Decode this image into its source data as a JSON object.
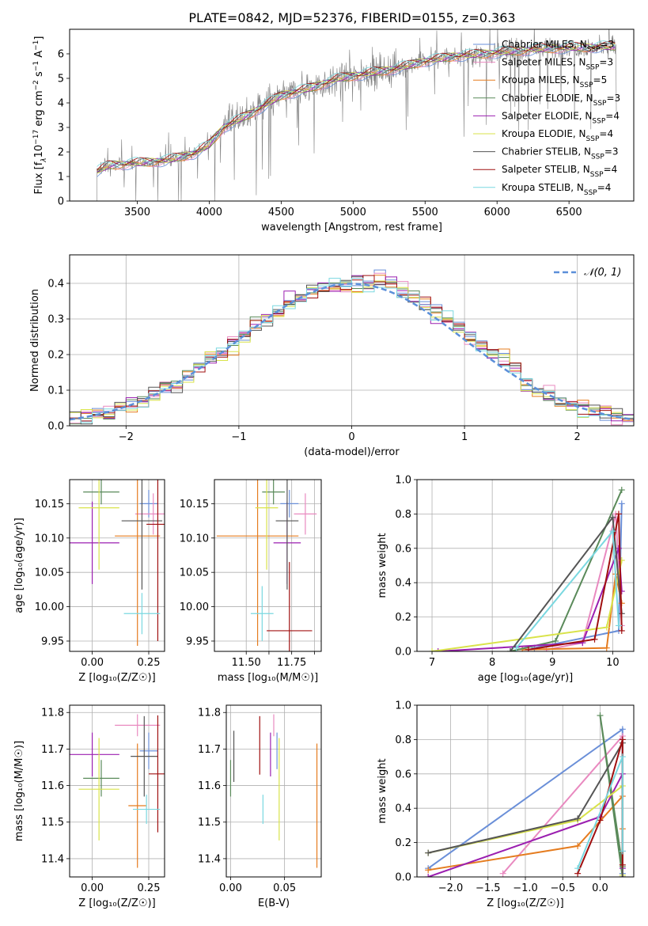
{
  "title": "PLATE=0842, MJD=52376, FIBERID=0155, z=0.363",
  "colors": {
    "chabrier_miles": "#6a8fd8",
    "salpeter_miles": "#e98ac0",
    "kroupa_miles": "#e57c1f",
    "chabrier_elodie": "#5a8a5a",
    "salpeter_elodie": "#9b1fb0",
    "kroupa_elodie": "#d9e34a",
    "chabrier_stelib": "#555555",
    "salpeter_stelib": "#a01010",
    "kroupa_stelib": "#7ad8e0",
    "data": "#808080",
    "gaussian": "#5b8fd9"
  },
  "legend_spectrum": [
    {
      "label": "Chabrier MILES, N",
      "sub": "SSP",
      "tail": "=3",
      "color": "chabrier_miles"
    },
    {
      "label": "Salpeter MILES, N",
      "sub": "SSP",
      "tail": "=3",
      "color": "salpeter_miles"
    },
    {
      "label": "Kroupa MILES, N",
      "sub": "SSP",
      "tail": "=5",
      "color": "kroupa_miles"
    },
    {
      "label": "Chabrier ELODIE, N",
      "sub": "SSP",
      "tail": "=3",
      "color": "chabrier_elodie"
    },
    {
      "label": "Salpeter ELODIE, N",
      "sub": "SSP",
      "tail": "=4",
      "color": "salpeter_elodie"
    },
    {
      "label": "Kroupa ELODIE, N",
      "sub": "SSP",
      "tail": "=4",
      "color": "kroupa_elodie"
    },
    {
      "label": "Chabrier STELIB, N",
      "sub": "SSP",
      "tail": "=3",
      "color": "chabrier_stelib"
    },
    {
      "label": "Salpeter STELIB, N",
      "sub": "SSP",
      "tail": "=4",
      "color": "salpeter_stelib"
    },
    {
      "label": "Kroupa STELIB, N",
      "sub": "SSP",
      "tail": "=4",
      "color": "kroupa_stelib"
    }
  ],
  "chart_data": [
    {
      "id": "spectrum",
      "type": "line",
      "ylabel_html": [
        "Flux [f",
        "λ",
        "10",
        "−17",
        " erg cm",
        "−2",
        " s",
        "−1",
        " A",
        "−1",
        "]"
      ],
      "xlabel": "wavelength [Angstrom, rest frame]",
      "xlim": [
        3030,
        6950
      ],
      "ylim": [
        0,
        7
      ],
      "xticks": [
        3500,
        4000,
        4500,
        5000,
        5500,
        6000,
        6500
      ],
      "yticks": [
        0,
        1,
        2,
        3,
        4,
        5,
        6
      ],
      "wavelength_range": [
        3220,
        6830
      ],
      "continuum": [
        [
          3220,
          1.2
        ],
        [
          3300,
          1.45
        ],
        [
          3500,
          1.55
        ],
        [
          3700,
          1.65
        ],
        [
          3900,
          1.95
        ],
        [
          4000,
          2.3
        ],
        [
          4100,
          3.0
        ],
        [
          4300,
          3.6
        ],
        [
          4500,
          4.3
        ],
        [
          4700,
          4.6
        ],
        [
          4900,
          5.0
        ],
        [
          5100,
          5.2
        ],
        [
          5300,
          5.4
        ],
        [
          5500,
          5.7
        ],
        [
          5700,
          5.9
        ],
        [
          5900,
          6.0
        ],
        [
          6100,
          6.1
        ],
        [
          6300,
          6.2
        ],
        [
          6500,
          6.25
        ],
        [
          6830,
          6.3
        ]
      ]
    },
    {
      "id": "residuals",
      "type": "step",
      "xlabel": "(data-model)/error",
      "ylabel": "Normed distribution",
      "xlim": [
        -2.5,
        2.5
      ],
      "ylim": [
        0,
        0.48
      ],
      "xticks": [
        -2,
        -1,
        0,
        1,
        2
      ],
      "yticks": [
        0.0,
        0.1,
        0.2,
        0.3,
        0.4
      ],
      "legend": "𝒩(0, 1)",
      "bin_width": 0.1
    },
    {
      "id": "age_vs_z",
      "type": "errorbar",
      "xlabel": "Z [log₁₀(Z/Z☉)]",
      "ylabel": "age  [log₁₀(age/yr)]",
      "xlim": [
        -0.1,
        0.32
      ],
      "ylim": [
        9.935,
        10.185
      ],
      "xticks": [
        0.0,
        0.25
      ],
      "yticks": [
        9.95,
        10.0,
        10.05,
        10.1,
        10.15
      ],
      "points": [
        {
          "c": "chabrier_miles",
          "x": 0.25,
          "xerr": 0.04,
          "y": 10.15,
          "yerr": 0.02
        },
        {
          "c": "salpeter_miles",
          "x": 0.27,
          "xerr": 0.08,
          "y": 10.135,
          "yerr": 0.03
        },
        {
          "c": "kroupa_miles",
          "x": 0.2,
          "xerr": 0.1,
          "y": 10.103,
          "yerr": 0.16
        },
        {
          "c": "chabrier_elodie",
          "x": 0.04,
          "xerr": 0.08,
          "y": 10.167,
          "yerr": 0.018
        },
        {
          "c": "salpeter_elodie",
          "x": 0.0,
          "xerr": 0.12,
          "y": 10.093,
          "yerr": 0.06
        },
        {
          "c": "kroupa_elodie",
          "x": 0.03,
          "xerr": 0.09,
          "y": 10.144,
          "yerr": 0.09
        },
        {
          "c": "chabrier_stelib",
          "x": 0.22,
          "xerr": 0.09,
          "y": 10.125,
          "yerr": 0.1
        },
        {
          "c": "salpeter_stelib",
          "x": 0.29,
          "xerr": 0.05,
          "y": 10.12,
          "yerr": 0.17
        },
        {
          "c": "kroupa_stelib",
          "x": 0.22,
          "xerr": 0.08,
          "y": 9.99,
          "yerr": 0.03
        }
      ]
    },
    {
      "id": "age_vs_mass",
      "type": "errorbar",
      "xlabel": "mass [log₁₀(M/M☉)]",
      "ylabel": "",
      "xlim": [
        11.36,
        11.83
      ],
      "ylim": [
        9.935,
        10.185
      ],
      "xticks": [
        11.5,
        11.6,
        11.7,
        11.8
      ],
      "xticklabels": [
        "11.50",
        "",
        "11.75",
        ""
      ],
      "yticks": [
        9.95,
        10.0,
        10.05,
        10.1,
        10.15
      ],
      "points": [
        {
          "c": "chabrier_miles",
          "x": 11.69,
          "xerr": 0.04,
          "y": 10.15,
          "yerr": 0.02
        },
        {
          "c": "salpeter_miles",
          "x": 11.76,
          "xerr": 0.05,
          "y": 10.135,
          "yerr": 0.03
        },
        {
          "c": "kroupa_miles",
          "x": 11.55,
          "xerr": 0.18,
          "y": 10.103,
          "yerr": 0.16
        },
        {
          "c": "chabrier_elodie",
          "x": 11.62,
          "xerr": 0.05,
          "y": 10.167,
          "yerr": 0.018
        },
        {
          "c": "salpeter_elodie",
          "x": 11.68,
          "xerr": 0.06,
          "y": 10.093,
          "yerr": 0.06
        },
        {
          "c": "kroupa_elodie",
          "x": 11.59,
          "xerr": 0.05,
          "y": 10.144,
          "yerr": 0.09
        },
        {
          "c": "chabrier_stelib",
          "x": 11.68,
          "xerr": 0.05,
          "y": 10.125,
          "yerr": 0.1
        },
        {
          "c": "salpeter_stelib",
          "x": 11.69,
          "xerr": 0.1,
          "y": 9.965,
          "yerr": 0.1
        },
        {
          "c": "kroupa_stelib",
          "x": 11.57,
          "xerr": 0.05,
          "y": 9.99,
          "yerr": 0.04
        }
      ]
    },
    {
      "id": "weight_vs_age",
      "type": "line",
      "xlabel": "age  [log₁₀(age/yr)]",
      "ylabel": "mass weight",
      "xlim": [
        6.75,
        10.35
      ],
      "ylim": [
        0,
        1
      ],
      "xticks": [
        7,
        8,
        9,
        10
      ],
      "yticks": [
        0.0,
        0.2,
        0.4,
        0.6,
        0.8,
        1.0
      ],
      "series": [
        {
          "c": "chabrier_miles",
          "x": [
            8.7,
            10.1,
            10.15
          ],
          "y": [
            0.02,
            0.12,
            0.86
          ]
        },
        {
          "c": "salpeter_miles",
          "x": [
            8.9,
            9.5,
            10.05,
            10.15
          ],
          "y": [
            0.01,
            0.05,
            0.8,
            0.15
          ]
        },
        {
          "c": "kroupa_miles",
          "x": [
            8.5,
            9.9,
            10.05,
            10.15
          ],
          "y": [
            0.01,
            0.02,
            0.45,
            0.28
          ]
        },
        {
          "c": "chabrier_elodie",
          "x": [
            8.3,
            9.05,
            10.15
          ],
          "y": [
            0.0,
            0.06,
            0.94
          ]
        },
        {
          "c": "salpeter_elodie",
          "x": [
            7.1,
            9.5,
            10.1,
            10.15
          ],
          "y": [
            0.0,
            0.05,
            0.6,
            0.35
          ]
        },
        {
          "c": "kroupa_elodie",
          "x": [
            7.0,
            9.9,
            10.15
          ],
          "y": [
            0.0,
            0.14,
            0.53
          ]
        },
        {
          "c": "chabrier_stelib",
          "x": [
            8.3,
            10.0,
            10.15
          ],
          "y": [
            0.0,
            0.78,
            0.22
          ]
        },
        {
          "c": "salpeter_stelib",
          "x": [
            8.6,
            9.7,
            10.1,
            10.15
          ],
          "y": [
            0.01,
            0.07,
            0.8,
            0.12
          ]
        },
        {
          "c": "kroupa_stelib",
          "x": [
            8.4,
            10.0,
            10.1
          ],
          "y": [
            0.02,
            0.7,
            0.15
          ]
        }
      ]
    },
    {
      "id": "mass_vs_z",
      "type": "errorbar",
      "xlabel": "Z [log₁₀(Z/Z☉)]",
      "ylabel": "mass [log₁₀(M/M☉)]",
      "xlim": [
        -0.1,
        0.32
      ],
      "ylim": [
        11.35,
        11.82
      ],
      "xticks": [
        0.0,
        0.25
      ],
      "yticks": [
        11.4,
        11.5,
        11.6,
        11.7,
        11.8
      ],
      "points": [
        {
          "c": "chabrier_miles",
          "x": 0.25,
          "xerr": 0.04,
          "y": 11.695,
          "yerr": 0.05
        },
        {
          "c": "salpeter_miles",
          "x": 0.2,
          "xerr": 0.1,
          "y": 11.765,
          "yerr": 0.03
        },
        {
          "c": "kroupa_miles",
          "x": 0.2,
          "xerr": 0.04,
          "y": 11.545,
          "yerr": 0.17
        },
        {
          "c": "chabrier_elodie",
          "x": 0.04,
          "xerr": 0.08,
          "y": 11.62,
          "yerr": 0.05
        },
        {
          "c": "salpeter_elodie",
          "x": 0.0,
          "xerr": 0.12,
          "y": 11.685,
          "yerr": 0.06
        },
        {
          "c": "kroupa_elodie",
          "x": 0.03,
          "xerr": 0.09,
          "y": 11.59,
          "yerr": 0.14
        },
        {
          "c": "chabrier_stelib",
          "x": 0.23,
          "xerr": 0.06,
          "y": 11.68,
          "yerr": 0.11
        },
        {
          "c": "salpeter_stelib",
          "x": 0.29,
          "xerr": 0.04,
          "y": 11.632,
          "yerr": 0.16
        },
        {
          "c": "kroupa_stelib",
          "x": 0.24,
          "xerr": 0.06,
          "y": 11.535,
          "yerr": 0.04
        }
      ]
    },
    {
      "id": "mass_vs_ebv",
      "type": "errorbar",
      "xlabel": "E(B-V)",
      "ylabel": "",
      "xlim": [
        -0.004,
        0.084
      ],
      "ylim": [
        11.35,
        11.82
      ],
      "xticks": [
        0.0,
        0.05
      ],
      "yticks": [
        11.4,
        11.5,
        11.6,
        11.7,
        11.8
      ],
      "points": [
        {
          "c": "chabrier_miles",
          "x": 0.043,
          "xerr": 0,
          "y": 11.695,
          "yerr": 0.05
        },
        {
          "c": "salpeter_miles",
          "x": 0.04,
          "xerr": 0,
          "y": 11.765,
          "yerr": 0.03
        },
        {
          "c": "kroupa_miles",
          "x": 0.08,
          "xerr": 0,
          "y": 11.545,
          "yerr": 0.17
        },
        {
          "c": "chabrier_elodie",
          "x": 0.0,
          "xerr": 0,
          "y": 11.62,
          "yerr": 0.05
        },
        {
          "c": "salpeter_elodie",
          "x": 0.037,
          "xerr": 0,
          "y": 11.685,
          "yerr": 0.06
        },
        {
          "c": "kroupa_elodie",
          "x": 0.045,
          "xerr": 0,
          "y": 11.59,
          "yerr": 0.14
        },
        {
          "c": "chabrier_stelib",
          "x": 0.003,
          "xerr": 0,
          "y": 11.68,
          "yerr": 0.07
        },
        {
          "c": "salpeter_stelib",
          "x": 0.027,
          "xerr": 0,
          "y": 11.71,
          "yerr": 0.08
        },
        {
          "c": "kroupa_stelib",
          "x": 0.03,
          "xerr": 0,
          "y": 11.535,
          "yerr": 0.04
        }
      ]
    },
    {
      "id": "weight_vs_z",
      "type": "line",
      "xlabel": "Z [log₁₀(Z/Z☉)]",
      "ylabel": "mass weight",
      "xlim": [
        -2.45,
        0.45
      ],
      "ylim": [
        0,
        1
      ],
      "xticks": [
        -2.0,
        -1.5,
        -1.0,
        -0.5,
        0.0
      ],
      "yticks": [
        0.0,
        0.2,
        0.4,
        0.6,
        0.8,
        1.0
      ],
      "series": [
        {
          "c": "chabrier_miles",
          "x": [
            -2.3,
            0.3,
            0.3
          ],
          "y": [
            0.05,
            0.86,
            0.02
          ]
        },
        {
          "c": "salpeter_miles",
          "x": [
            -1.3,
            0.3,
            0.3
          ],
          "y": [
            0.02,
            0.82,
            0.15
          ]
        },
        {
          "c": "kroupa_miles",
          "x": [
            -2.3,
            -0.3,
            0.3,
            0.3
          ],
          "y": [
            0.04,
            0.18,
            0.47,
            0.28
          ]
        },
        {
          "c": "chabrier_elodie",
          "x": [
            0.3,
            0.0,
            0.3
          ],
          "y": [
            0.0,
            0.94,
            0.06
          ]
        },
        {
          "c": "salpeter_elodie",
          "x": [
            -2.3,
            0.0,
            0.3,
            0.3
          ],
          "y": [
            0.0,
            0.35,
            0.6,
            0.05
          ]
        },
        {
          "c": "kroupa_elodie",
          "x": [
            -2.3,
            -0.3,
            0.3,
            0.3
          ],
          "y": [
            0.14,
            0.33,
            0.53,
            0.01
          ]
        },
        {
          "c": "chabrier_stelib",
          "x": [
            -2.3,
            -0.3,
            0.3,
            0.3
          ],
          "y": [
            0.14,
            0.34,
            0.78,
            0.0
          ]
        },
        {
          "c": "salpeter_stelib",
          "x": [
            -0.3,
            0.0,
            0.3,
            0.3
          ],
          "y": [
            0.02,
            0.33,
            0.8,
            0.07
          ]
        },
        {
          "c": "kroupa_stelib",
          "x": [
            -0.3,
            0.3,
            0.3
          ],
          "y": [
            0.05,
            0.7,
            0.15
          ]
        }
      ]
    }
  ]
}
